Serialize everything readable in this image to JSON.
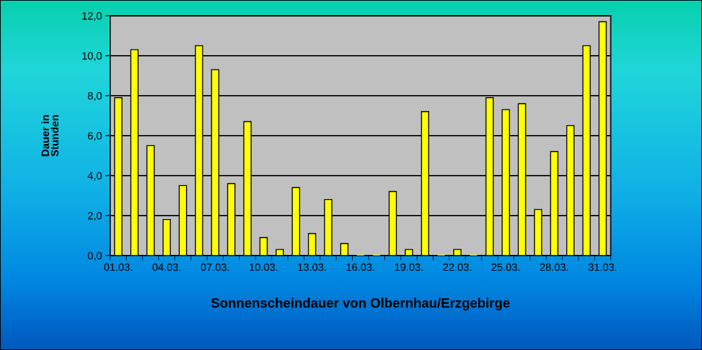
{
  "chart_data": {
    "type": "bar",
    "xlabel": "Sonnenscheindauer von Olbernhau/Erzgebirge",
    "ylabel": "Dauer in\nStunden",
    "categories": [
      "01.03.",
      null,
      null,
      "04.03.",
      null,
      null,
      "07.03.",
      null,
      null,
      "10.03.",
      null,
      null,
      "13.03.",
      null,
      null,
      "16.03.",
      null,
      null,
      "19.03.",
      null,
      null,
      "22.03.",
      null,
      null,
      "25.03.",
      null,
      null,
      "28.03.",
      null,
      null,
      "31.03."
    ],
    "values": [
      7.9,
      10.3,
      5.5,
      1.8,
      3.5,
      10.5,
      9.3,
      3.6,
      6.7,
      0.9,
      0.3,
      3.4,
      1.1,
      2.8,
      0.6,
      0,
      0,
      3.2,
      0.3,
      7.2,
      0,
      0.3,
      0,
      7.9,
      7.3,
      7.6,
      2.3,
      5.2,
      6.5,
      10.5,
      11.7
    ],
    "color": "#ffff00",
    "ylim": [
      0,
      12
    ],
    "yticks": [
      {
        "value": 0,
        "label": "0,0"
      },
      {
        "value": 2,
        "label": "2,0"
      },
      {
        "value": 4,
        "label": "4,0"
      },
      {
        "value": 6,
        "label": "6,0"
      },
      {
        "value": 8,
        "label": "8,0"
      },
      {
        "value": 10,
        "label": "10,0"
      },
      {
        "value": 12,
        "label": "12,0"
      }
    ],
    "grid": "y"
  }
}
